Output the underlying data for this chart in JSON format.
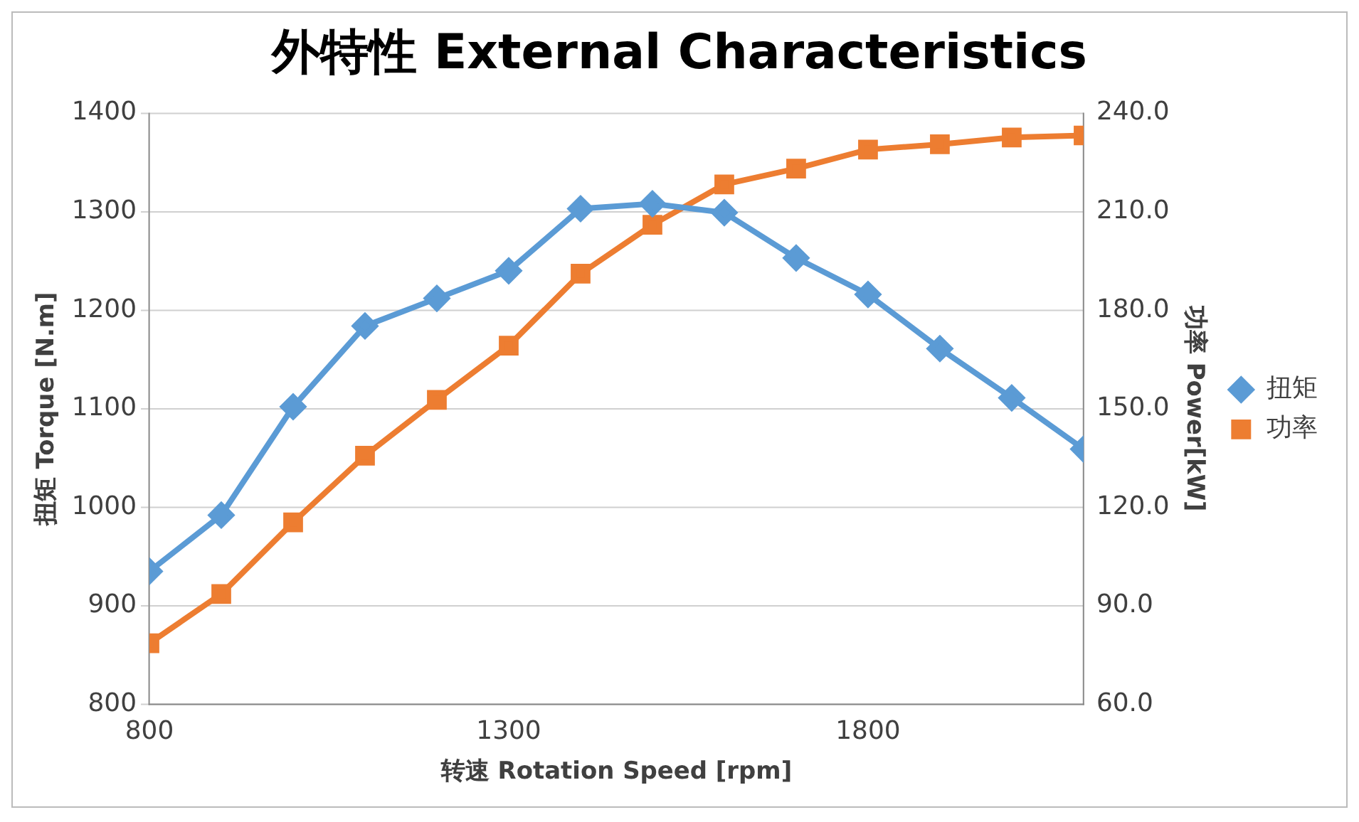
{
  "chart_data": {
    "type": "line",
    "title": "外特性 External Characteristics",
    "xlabel": "转速 Rotation Speed [rpm]",
    "ylabel": "扭矩 Torque [N.m]",
    "y2label": "功率 Power[kW]",
    "x": [
      800,
      900,
      1000,
      1100,
      1200,
      1300,
      1400,
      1500,
      1600,
      1700,
      1800,
      1900,
      2000,
      2100
    ],
    "series": [
      {
        "name": "扭矩",
        "color": "#5b9bd5",
        "marker": "diamond",
        "values": [
          935,
          992,
          1102,
          1184,
          1212,
          1240,
          1303,
          1308,
          1299,
          1253,
          1216,
          1161,
          1111,
          1059
        ]
      },
      {
        "name": "功率",
        "color": "#ed7d31",
        "marker": "square",
        "axis": "y2",
        "values": [
          78.6,
          93.6,
          115.4,
          135.7,
          152.7,
          169.2,
          191.1,
          206.0,
          218.3,
          223.1,
          228.9,
          230.5,
          232.6,
          233.2
        ]
      }
    ],
    "xlim": [
      800,
      2100
    ],
    "xticks": [
      800,
      1300,
      1800
    ],
    "ylim": [
      800,
      1400
    ],
    "yticks": [
      800,
      900,
      1000,
      1100,
      1200,
      1300,
      1400
    ],
    "y2lim": [
      60,
      240
    ],
    "y2ticks": [
      {
        "value": 60,
        "label": "60.0"
      },
      {
        "value": 90,
        "label": "90.0"
      },
      {
        "value": 120,
        "label": "120.0"
      },
      {
        "value": 150,
        "label": "150.0"
      },
      {
        "value": 180,
        "label": "180.0"
      },
      {
        "value": 210,
        "label": "210.0"
      },
      {
        "value": 240,
        "label": "240.0"
      }
    ],
    "grid": "y",
    "legend": "right",
    "line_style": "solid"
  }
}
